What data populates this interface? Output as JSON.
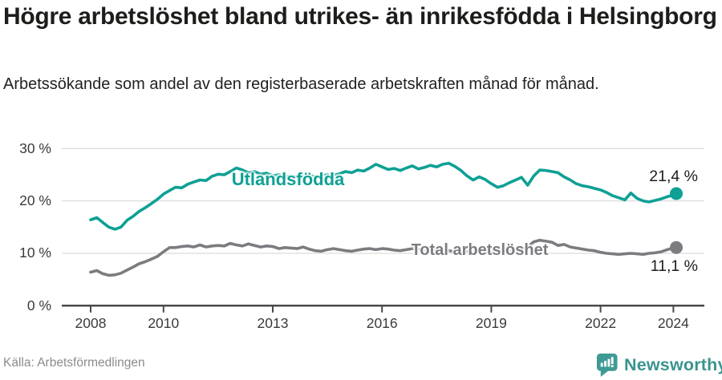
{
  "header": {
    "title": "Högre arbetslöshet bland utrikes- än inrikesfödda i Helsingborg",
    "subtitle": "Arbetssökande som andel av den registerbaserade arbetskraften månad för månad."
  },
  "footer": {
    "source": "Källa: Arbetsförmedlingen",
    "brand": "Newsworthy"
  },
  "colors": {
    "series_foreign_born": "#0ea094",
    "series_total": "#7c7c80",
    "gridline": "#dcdcdc",
    "axis": "#4a4a4a",
    "axis_text": "#3a3a3a",
    "value_text": "#1d1d1b",
    "source_text": "#8c8c8c",
    "brand_teal": "#3f9a94"
  },
  "chart_data": {
    "type": "line",
    "title": "Högre arbetslöshet bland utrikes- än inrikesfödda i Helsingborg",
    "subtitle": "Arbetssökande som andel av den registerbaserade arbetskraften månad för månad.",
    "xlabel": "",
    "ylabel": "",
    "unit": "%",
    "grid": "horizontal",
    "legend_position": "inline-labels",
    "xlim": [
      2007.7,
      2024.9
    ],
    "ylim": [
      0,
      32
    ],
    "y_ticks": [
      {
        "value": 0,
        "label": "0 %"
      },
      {
        "value": 10,
        "label": "10 %"
      },
      {
        "value": 20,
        "label": "20 %"
      },
      {
        "value": 30,
        "label": "30 %"
      }
    ],
    "x_ticks": [
      {
        "year": 2008,
        "label": "2008"
      },
      {
        "year": 2010,
        "label": "2010"
      },
      {
        "year": 2013,
        "label": "2013"
      },
      {
        "year": 2016,
        "label": "2016"
      },
      {
        "year": 2019,
        "label": "2019"
      },
      {
        "year": 2022,
        "label": "2022"
      },
      {
        "year": 2024,
        "label": "2024"
      }
    ],
    "x": [
      2008,
      2008.17,
      2008.33,
      2008.5,
      2008.67,
      2008.83,
      2009,
      2009.17,
      2009.33,
      2009.5,
      2009.67,
      2009.83,
      2010,
      2010.17,
      2010.33,
      2010.5,
      2010.67,
      2010.83,
      2011,
      2011.17,
      2011.33,
      2011.5,
      2011.67,
      2011.83,
      2012,
      2012.17,
      2012.33,
      2012.5,
      2012.67,
      2012.83,
      2013,
      2013.17,
      2013.33,
      2013.5,
      2013.67,
      2013.83,
      2014,
      2014.17,
      2014.33,
      2014.5,
      2014.67,
      2014.83,
      2015,
      2015.17,
      2015.33,
      2015.5,
      2015.67,
      2015.83,
      2016,
      2016.17,
      2016.33,
      2016.5,
      2016.67,
      2016.83,
      2017,
      2017.17,
      2017.33,
      2017.5,
      2017.67,
      2017.83,
      2018,
      2018.17,
      2018.33,
      2018.5,
      2018.67,
      2018.83,
      2019,
      2019.17,
      2019.33,
      2019.5,
      2019.67,
      2019.83,
      2020,
      2020.17,
      2020.33,
      2020.5,
      2020.67,
      2020.83,
      2021,
      2021.17,
      2021.33,
      2021.5,
      2021.67,
      2021.83,
      2022,
      2022.17,
      2022.33,
      2022.5,
      2022.67,
      2022.83,
      2023,
      2023.17,
      2023.33,
      2023.5,
      2023.67,
      2023.83,
      2024,
      2024.08
    ],
    "series": [
      {
        "name": "Utlandsfödda",
        "color": "#0ea094",
        "end_label": "21,4 %",
        "end_value": 21.4,
        "values": [
          16.4,
          16.8,
          15.9,
          15.0,
          14.6,
          15.0,
          16.3,
          17.1,
          18.0,
          18.7,
          19.5,
          20.3,
          21.3,
          22.0,
          22.6,
          22.5,
          23.2,
          23.6,
          24.0,
          23.9,
          24.7,
          25.1,
          25.0,
          25.6,
          26.3,
          25.9,
          25.4,
          25.6,
          25.1,
          25.3,
          24.8,
          25.0,
          24.6,
          24.8,
          24.5,
          24.7,
          24.9,
          24.6,
          24.8,
          25.0,
          24.9,
          25.2,
          25.6,
          25.4,
          25.9,
          25.7,
          26.3,
          27.0,
          26.5,
          26.0,
          26.2,
          25.8,
          26.3,
          26.7,
          26.1,
          26.4,
          26.8,
          26.5,
          27.0,
          27.2,
          26.6,
          25.8,
          24.8,
          24.0,
          24.6,
          24.1,
          23.3,
          22.6,
          22.9,
          23.5,
          24.0,
          24.5,
          23.0,
          24.8,
          25.9,
          25.8,
          25.6,
          25.4,
          24.6,
          24.0,
          23.3,
          22.9,
          22.7,
          22.4,
          22.1,
          21.6,
          21.0,
          20.6,
          20.2,
          21.5,
          20.5,
          20.0,
          19.8,
          20.1,
          20.4,
          20.8,
          21.1,
          21.4
        ]
      },
      {
        "name": "Total arbetslöshet",
        "color": "#7c7c80",
        "end_label": "11,1 %",
        "end_value": 11.1,
        "values": [
          6.4,
          6.7,
          6.1,
          5.8,
          5.9,
          6.2,
          6.8,
          7.4,
          8.0,
          8.4,
          8.9,
          9.4,
          10.3,
          11.1,
          11.1,
          11.3,
          11.4,
          11.2,
          11.6,
          11.2,
          11.4,
          11.5,
          11.4,
          11.9,
          11.6,
          11.4,
          11.8,
          11.5,
          11.2,
          11.4,
          11.3,
          10.9,
          11.1,
          11.0,
          10.9,
          11.2,
          10.8,
          10.5,
          10.4,
          10.7,
          10.9,
          10.7,
          10.5,
          10.4,
          10.6,
          10.8,
          10.9,
          10.7,
          10.9,
          10.8,
          10.6,
          10.5,
          10.7,
          10.9,
          10.8,
          10.4,
          10.6,
          10.5,
          10.3,
          10.5,
          10.3,
          10.2,
          10.4,
          10.2,
          10.3,
          10.1,
          10.2,
          10.3,
          10.4,
          10.5,
          10.4,
          10.6,
          11.3,
          12.2,
          12.5,
          12.3,
          12.1,
          11.5,
          11.7,
          11.2,
          11.0,
          10.8,
          10.6,
          10.5,
          10.2,
          10.0,
          9.9,
          9.8,
          9.9,
          10.0,
          9.9,
          9.8,
          10.0,
          10.1,
          10.3,
          10.7,
          11.0,
          11.1
        ]
      }
    ]
  }
}
